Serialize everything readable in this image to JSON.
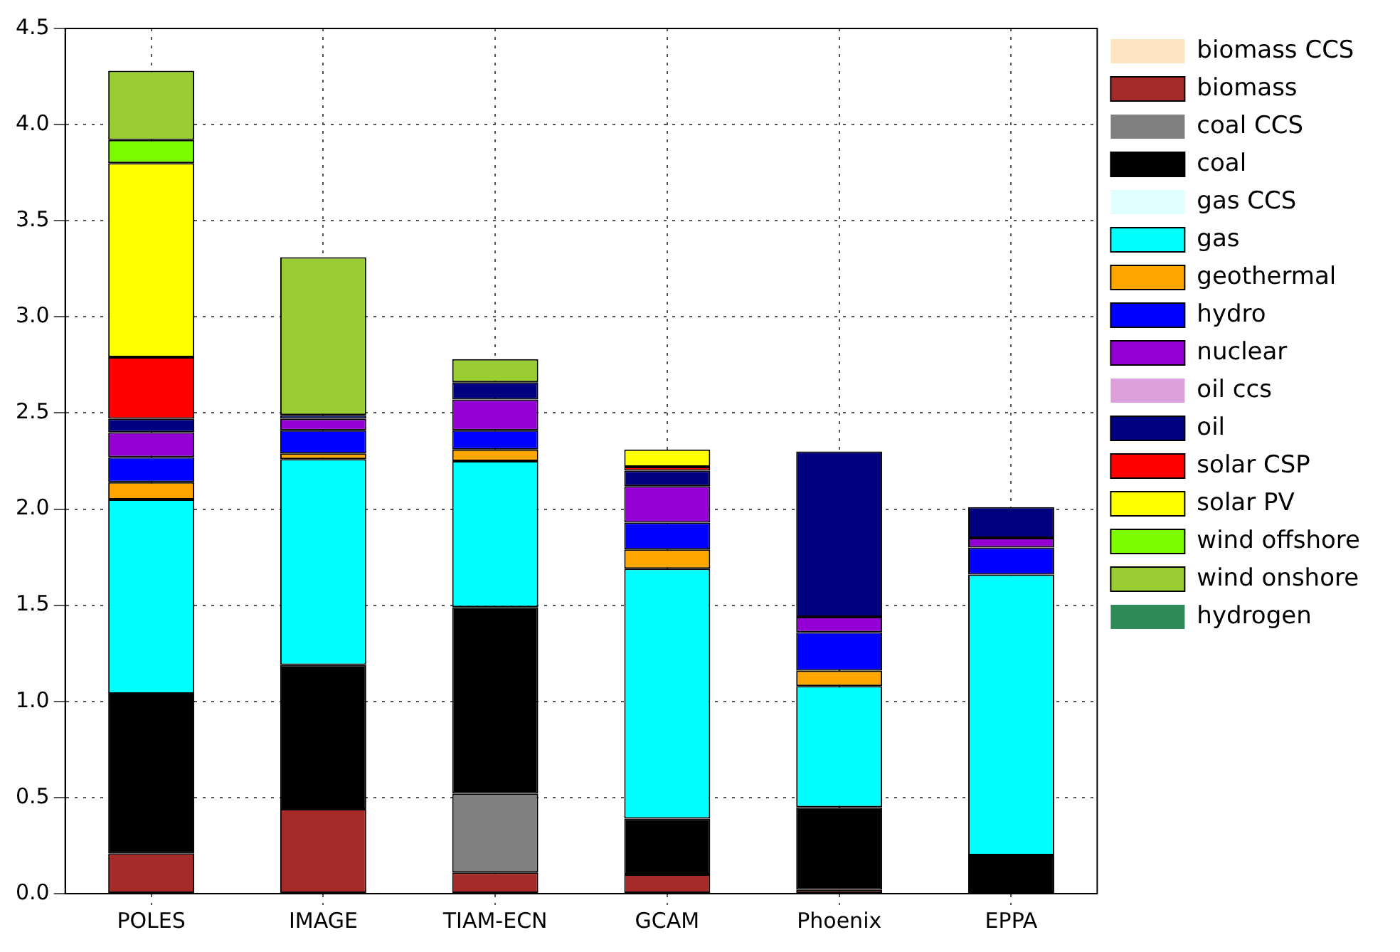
{
  "chart_data": {
    "type": "bar",
    "stacked": true,
    "categories": [
      "POLES",
      "IMAGE",
      "TIAM-ECN",
      "GCAM",
      "Phoenix",
      "EPPA"
    ],
    "series": [
      {
        "name": "biomass CCS",
        "color": "#ffe4c4",
        "values": [
          0,
          0,
          0,
          0,
          0,
          0
        ]
      },
      {
        "name": "biomass",
        "color": "#a52a2a",
        "values": [
          0.21,
          0.44,
          0.11,
          0.1,
          0.02,
          0
        ]
      },
      {
        "name": "coal CCS",
        "color": "#808080",
        "values": [
          0,
          0,
          0.41,
          0,
          0,
          0
        ]
      },
      {
        "name": "coal",
        "color": "#000000",
        "values": [
          0.83,
          0.75,
          0.97,
          0.29,
          0.43,
          0.2
        ]
      },
      {
        "name": "gas CCS",
        "color": "#e0ffff",
        "values": [
          0,
          0,
          0,
          0,
          0,
          0
        ]
      },
      {
        "name": "gas",
        "color": "#00ffff",
        "values": [
          1.01,
          1.07,
          0.76,
          1.3,
          0.63,
          1.46
        ]
      },
      {
        "name": "geothermal",
        "color": "#ffa500",
        "values": [
          0.09,
          0.03,
          0.06,
          0.1,
          0.08,
          0
        ]
      },
      {
        "name": "hydro",
        "color": "#0000ff",
        "values": [
          0.13,
          0.12,
          0.1,
          0.14,
          0.2,
          0.14
        ]
      },
      {
        "name": "nuclear",
        "color": "#9400d3",
        "values": [
          0.13,
          0.06,
          0.16,
          0.19,
          0.08,
          0.05
        ]
      },
      {
        "name": "oil ccs",
        "color": "#dda0dd",
        "values": [
          0,
          0,
          0,
          0,
          0,
          0
        ]
      },
      {
        "name": "oil",
        "color": "#000080",
        "values": [
          0.07,
          0.02,
          0.09,
          0.08,
          0.86,
          0.16
        ]
      },
      {
        "name": "solar CSP",
        "color": "#ff0000",
        "values": [
          0.32,
          0,
          0,
          0.02,
          0,
          0
        ]
      },
      {
        "name": "solar PV",
        "color": "#ffff00",
        "values": [
          1.01,
          0,
          0,
          0.09,
          0,
          0
        ]
      },
      {
        "name": "wind offshore",
        "color": "#7cfc00",
        "values": [
          0.12,
          0,
          0,
          0,
          0,
          0
        ]
      },
      {
        "name": "wind onshore",
        "color": "#9acd32",
        "values": [
          0.36,
          0.82,
          0.12,
          0,
          0,
          0
        ]
      },
      {
        "name": "hydrogen",
        "color": "#2e8b57",
        "values": [
          0,
          0,
          0,
          0,
          0,
          0
        ]
      }
    ],
    "ylim": [
      0,
      4.5
    ],
    "yticks": [
      {
        "value": 0,
        "label": "0.0"
      },
      0.5,
      {
        "value": 1,
        "label": "1.0"
      },
      1.5,
      {
        "value": 2,
        "label": "2.0"
      },
      2.5,
      {
        "value": 3,
        "label": "3.0"
      },
      3.5,
      {
        "value": 4,
        "label": "4.0"
      },
      4.5
    ],
    "grid": true,
    "legend": "right"
  }
}
